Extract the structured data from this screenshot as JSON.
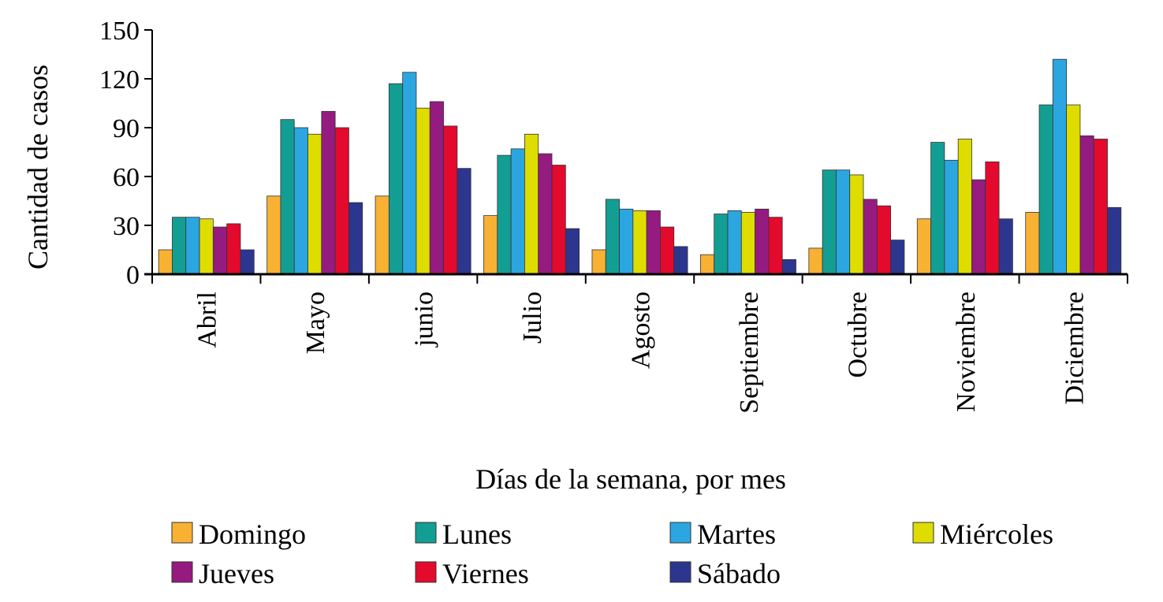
{
  "chart_data": {
    "type": "bar",
    "title": "",
    "xlabel": "Días de la semana, por mes",
    "ylabel": "Cantidad de casos",
    "ylim": [
      0,
      150
    ],
    "yticks": [
      "0",
      "30",
      "60",
      "90",
      "120",
      "150"
    ],
    "grid": false,
    "legend_position": "bottom",
    "categories": [
      "Abril",
      "Mayo",
      "junio",
      "Julio",
      "Agosto",
      "Septiembre",
      "Octubre",
      "Noviembre",
      "Diciembre"
    ],
    "series": [
      {
        "name": "Domingo",
        "color": "#F8B133",
        "values": [
          15,
          48,
          48,
          36,
          15,
          12,
          16,
          34,
          38
        ]
      },
      {
        "name": "Lunes",
        "color": "#139E94",
        "values": [
          35,
          95,
          117,
          73,
          46,
          37,
          64,
          81,
          104
        ]
      },
      {
        "name": "Martes",
        "color": "#2BA6E0",
        "values": [
          35,
          90,
          124,
          77,
          40,
          39,
          64,
          70,
          132
        ]
      },
      {
        "name": "Miércoles",
        "color": "#DFDD00",
        "values": [
          34,
          86,
          102,
          86,
          39,
          38,
          61,
          83,
          104
        ]
      },
      {
        "name": "Jueves",
        "color": "#951B81",
        "values": [
          29,
          100,
          106,
          74,
          39,
          40,
          46,
          58,
          85
        ]
      },
      {
        "name": "Viernes",
        "color": "#E30A2D",
        "values": [
          31,
          90,
          91,
          67,
          29,
          35,
          42,
          69,
          83
        ]
      },
      {
        "name": "Sábado",
        "color": "#2C368F",
        "values": [
          15,
          44,
          65,
          28,
          17,
          9,
          21,
          34,
          41
        ]
      }
    ]
  }
}
